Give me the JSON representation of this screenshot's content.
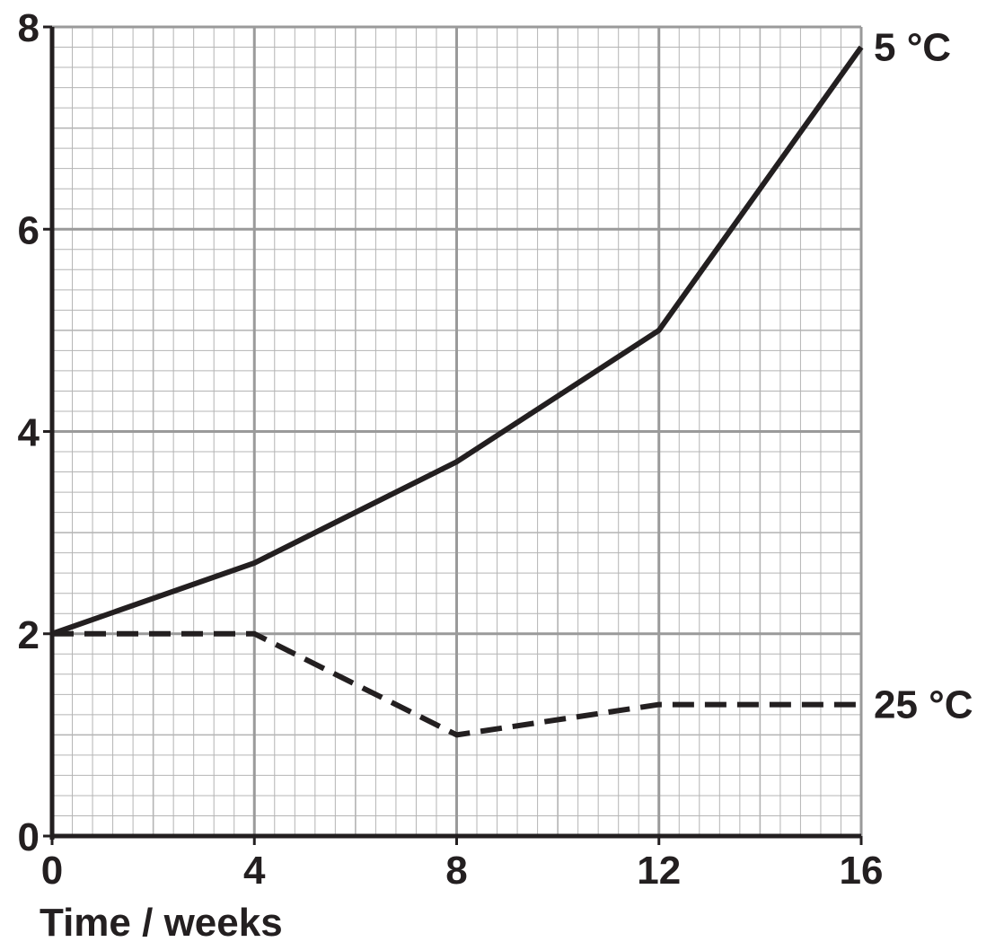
{
  "chart_data": {
    "type": "line",
    "title": "",
    "xlabel": "Time / weeks",
    "ylabel": "",
    "xlim": [
      0,
      16
    ],
    "ylim": [
      0,
      8
    ],
    "x_ticks": [
      0,
      4,
      8,
      12,
      16
    ],
    "y_ticks": [
      0,
      2,
      4,
      6,
      8
    ],
    "x_tick_labels": [
      "0",
      "4",
      "8",
      "12",
      "16"
    ],
    "y_tick_labels": [
      "0",
      "2",
      "4",
      "6",
      "8"
    ],
    "grid": true,
    "legend": "none",
    "series": [
      {
        "name": "5 °C",
        "style": "solid",
        "color": "#231f20",
        "x": [
          0,
          4,
          8,
          12,
          16
        ],
        "y": [
          2.0,
          2.7,
          3.7,
          5.0,
          7.8
        ]
      },
      {
        "name": "25 °C",
        "style": "dashed",
        "color": "#231f20",
        "x": [
          0,
          4,
          8,
          12,
          16
        ],
        "y": [
          2.0,
          2.0,
          1.0,
          1.3,
          1.3
        ]
      }
    ]
  },
  "colors": {
    "ink": "#231f20",
    "grid_minor": "#b4b4b4",
    "grid_major": "#9a9a9a"
  }
}
